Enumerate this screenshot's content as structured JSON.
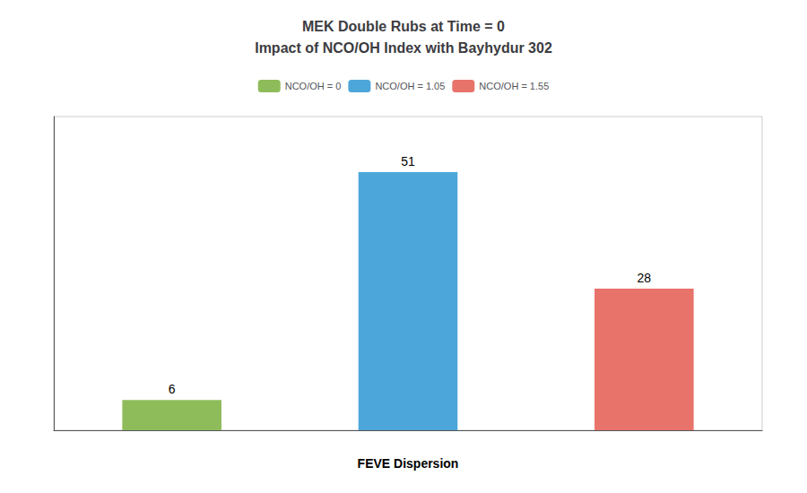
{
  "chart_data": {
    "type": "bar",
    "title": "MEK Double Rubs at Time = 0\nImpact of NCO/OH Index with Bayhydur 302",
    "categories": [
      "NCO/OH = 0",
      "NCO/OH = 1.05",
      "NCO/OH = 1.55"
    ],
    "values": [
      6,
      51,
      28
    ],
    "colors": [
      "#8fbc5a",
      "#4da6d9",
      "#e8736b"
    ],
    "xlabel": "FEVE Dispersion",
    "ylim": [
      0,
      62
    ],
    "yticks": [],
    "grid": false,
    "legend": "top",
    "data_labels": true,
    "tick_labels": false
  }
}
